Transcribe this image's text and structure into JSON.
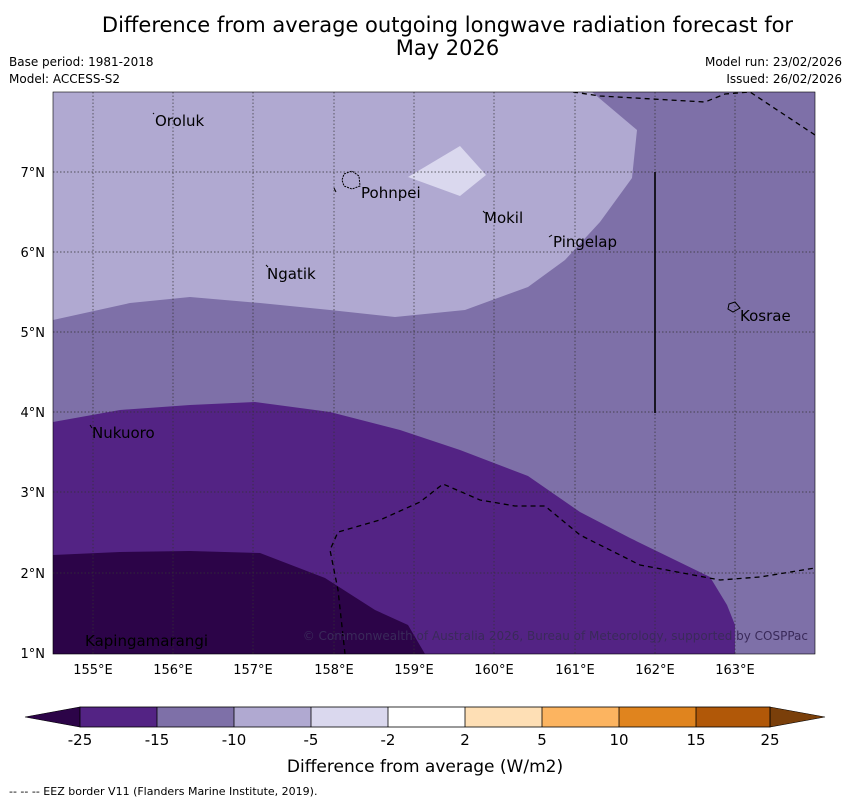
{
  "title_line1": "Difference from average outgoing longwave radiation forecast for",
  "title_line2": "May 2026",
  "base_period": "Base period: 1981-2018",
  "model": "Model: ACCESS-S2",
  "model_run": "Model run: 23/02/2026",
  "issued": "Issued: 26/02/2026",
  "places": [
    {
      "name": "Oroluk",
      "lon": 155.8,
      "lat": 7.7
    },
    {
      "name": "Pohnpei",
      "lon": 158.2,
      "lat": 6.9
    },
    {
      "name": "Mokil",
      "lon": 159.9,
      "lat": 6.4
    },
    {
      "name": "Pingelap",
      "lon": 160.7,
      "lat": 6.2
    },
    {
      "name": "Ngatik",
      "lon": 157.3,
      "lat": 5.8
    },
    {
      "name": "Kosrae",
      "lon": 163.0,
      "lat": 5.3
    },
    {
      "name": "Nukuoro",
      "lon": 154.9,
      "lat": 3.85
    },
    {
      "name": "Kapingamarangi",
      "lon": 154.8,
      "lat": 1.1
    }
  ],
  "lon_ticks": [
    "155°E",
    "156°E",
    "157°E",
    "158°E",
    "159°E",
    "160°E",
    "161°E",
    "162°E",
    "163°E"
  ],
  "lat_ticks": [
    "1°N",
    "2°N",
    "3°N",
    "4°N",
    "5°N",
    "6°N",
    "7°N"
  ],
  "copyright": "© Commonwealth of Australia 2026, Bureau of Meteorology, supported by COSPPac",
  "colorbar": {
    "label": "Difference from average (W/m2)",
    "ticks": [
      "-25",
      "-15",
      "-10",
      "-5",
      "-2",
      "2",
      "5",
      "10",
      "15",
      "25"
    ],
    "colors": {
      "below": "#2c0448",
      "bins": [
        "#532384",
        "#7e70a8",
        "#b0a9d1",
        "#dad8ee",
        "#ffffff",
        "#fedfb5",
        "#fcb460",
        "#e0841e",
        "#b15808"
      ],
      "above": "#7a3f0a"
    }
  },
  "footnote": "--  --  -- EEZ border V11 (Flanders Marine Institute, 2019)."
}
